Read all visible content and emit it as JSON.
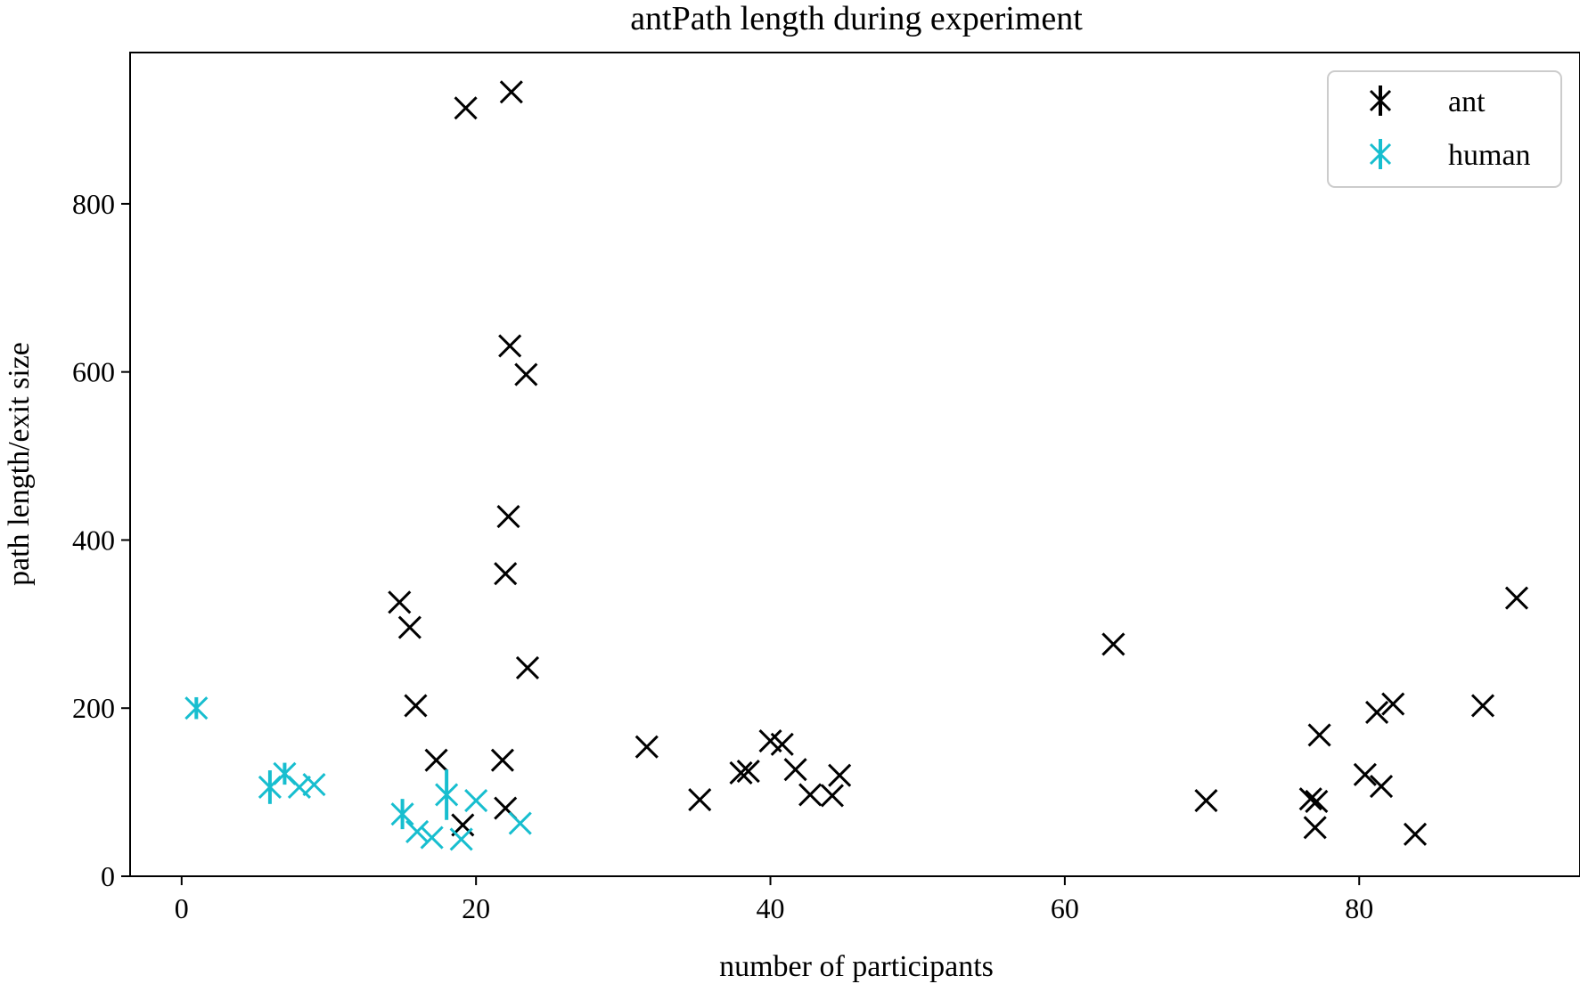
{
  "chart_data": {
    "type": "scatter",
    "title": "antPath length during experiment",
    "xlabel": "number of participants",
    "ylabel": "path length/exit size",
    "xlim": [
      -3.5,
      95
    ],
    "ylim": [
      0,
      980
    ],
    "xticks": [
      0,
      20,
      40,
      60,
      80
    ],
    "yticks": [
      0,
      200,
      400,
      600,
      800
    ],
    "grid": false,
    "legend_position": "top-right",
    "marker": "x",
    "series": [
      {
        "name": "ant",
        "color": "#000000",
        "points": [
          {
            "x": 19.3,
            "y": 914,
            "err": 0
          },
          {
            "x": 22.4,
            "y": 933,
            "err": 0
          },
          {
            "x": 22.3,
            "y": 631,
            "err": 0
          },
          {
            "x": 23.4,
            "y": 597,
            "err": 0
          },
          {
            "x": 22.2,
            "y": 428,
            "err": 0
          },
          {
            "x": 22.0,
            "y": 360,
            "err": 0
          },
          {
            "x": 14.8,
            "y": 326,
            "err": 0
          },
          {
            "x": 15.5,
            "y": 296,
            "err": 0
          },
          {
            "x": 23.5,
            "y": 248,
            "err": 0
          },
          {
            "x": 15.9,
            "y": 203,
            "err": 0
          },
          {
            "x": 17.3,
            "y": 138,
            "err": 0
          },
          {
            "x": 21.8,
            "y": 138,
            "err": 0
          },
          {
            "x": 22.0,
            "y": 81,
            "err": 0
          },
          {
            "x": 19.1,
            "y": 61,
            "err": 0
          },
          {
            "x": 31.6,
            "y": 154,
            "err": 0
          },
          {
            "x": 35.2,
            "y": 91,
            "err": 0
          },
          {
            "x": 38.0,
            "y": 123,
            "err": 0
          },
          {
            "x": 38.5,
            "y": 125,
            "err": 0
          },
          {
            "x": 40.0,
            "y": 161,
            "err": 0
          },
          {
            "x": 40.8,
            "y": 157,
            "err": 0
          },
          {
            "x": 41.7,
            "y": 127,
            "err": 0
          },
          {
            "x": 42.7,
            "y": 97,
            "err": 0
          },
          {
            "x": 44.2,
            "y": 96,
            "err": 0
          },
          {
            "x": 44.7,
            "y": 120,
            "err": 0
          },
          {
            "x": 63.3,
            "y": 276,
            "err": 0
          },
          {
            "x": 69.6,
            "y": 90,
            "err": 0
          },
          {
            "x": 76.7,
            "y": 92,
            "err": 0
          },
          {
            "x": 77.1,
            "y": 89,
            "err": 0
          },
          {
            "x": 77.0,
            "y": 58,
            "err": 0
          },
          {
            "x": 77.3,
            "y": 168,
            "err": 0
          },
          {
            "x": 80.4,
            "y": 121,
            "err": 0
          },
          {
            "x": 81.2,
            "y": 195,
            "err": 0
          },
          {
            "x": 82.3,
            "y": 205,
            "err": 0
          },
          {
            "x": 81.5,
            "y": 107,
            "err": 0
          },
          {
            "x": 83.8,
            "y": 50,
            "err": 0
          },
          {
            "x": 88.4,
            "y": 203,
            "err": 0
          },
          {
            "x": 90.7,
            "y": 331,
            "err": 0
          }
        ]
      },
      {
        "name": "human",
        "color": "#17becf",
        "points": [
          {
            "x": 1.0,
            "y": 200,
            "err": 13
          },
          {
            "x": 6.0,
            "y": 106,
            "err": 20
          },
          {
            "x": 7.0,
            "y": 122,
            "err": 13
          },
          {
            "x": 8.0,
            "y": 106,
            "err": 0
          },
          {
            "x": 9.0,
            "y": 109,
            "err": 0
          },
          {
            "x": 15.0,
            "y": 74,
            "err": 18
          },
          {
            "x": 16.0,
            "y": 53,
            "err": 0
          },
          {
            "x": 17.0,
            "y": 46,
            "err": 0
          },
          {
            "x": 18.0,
            "y": 97,
            "err": 30
          },
          {
            "x": 19.0,
            "y": 44,
            "err": 0
          },
          {
            "x": 20.0,
            "y": 90,
            "err": 0
          },
          {
            "x": 23.0,
            "y": 63,
            "err": 0
          }
        ]
      }
    ]
  }
}
